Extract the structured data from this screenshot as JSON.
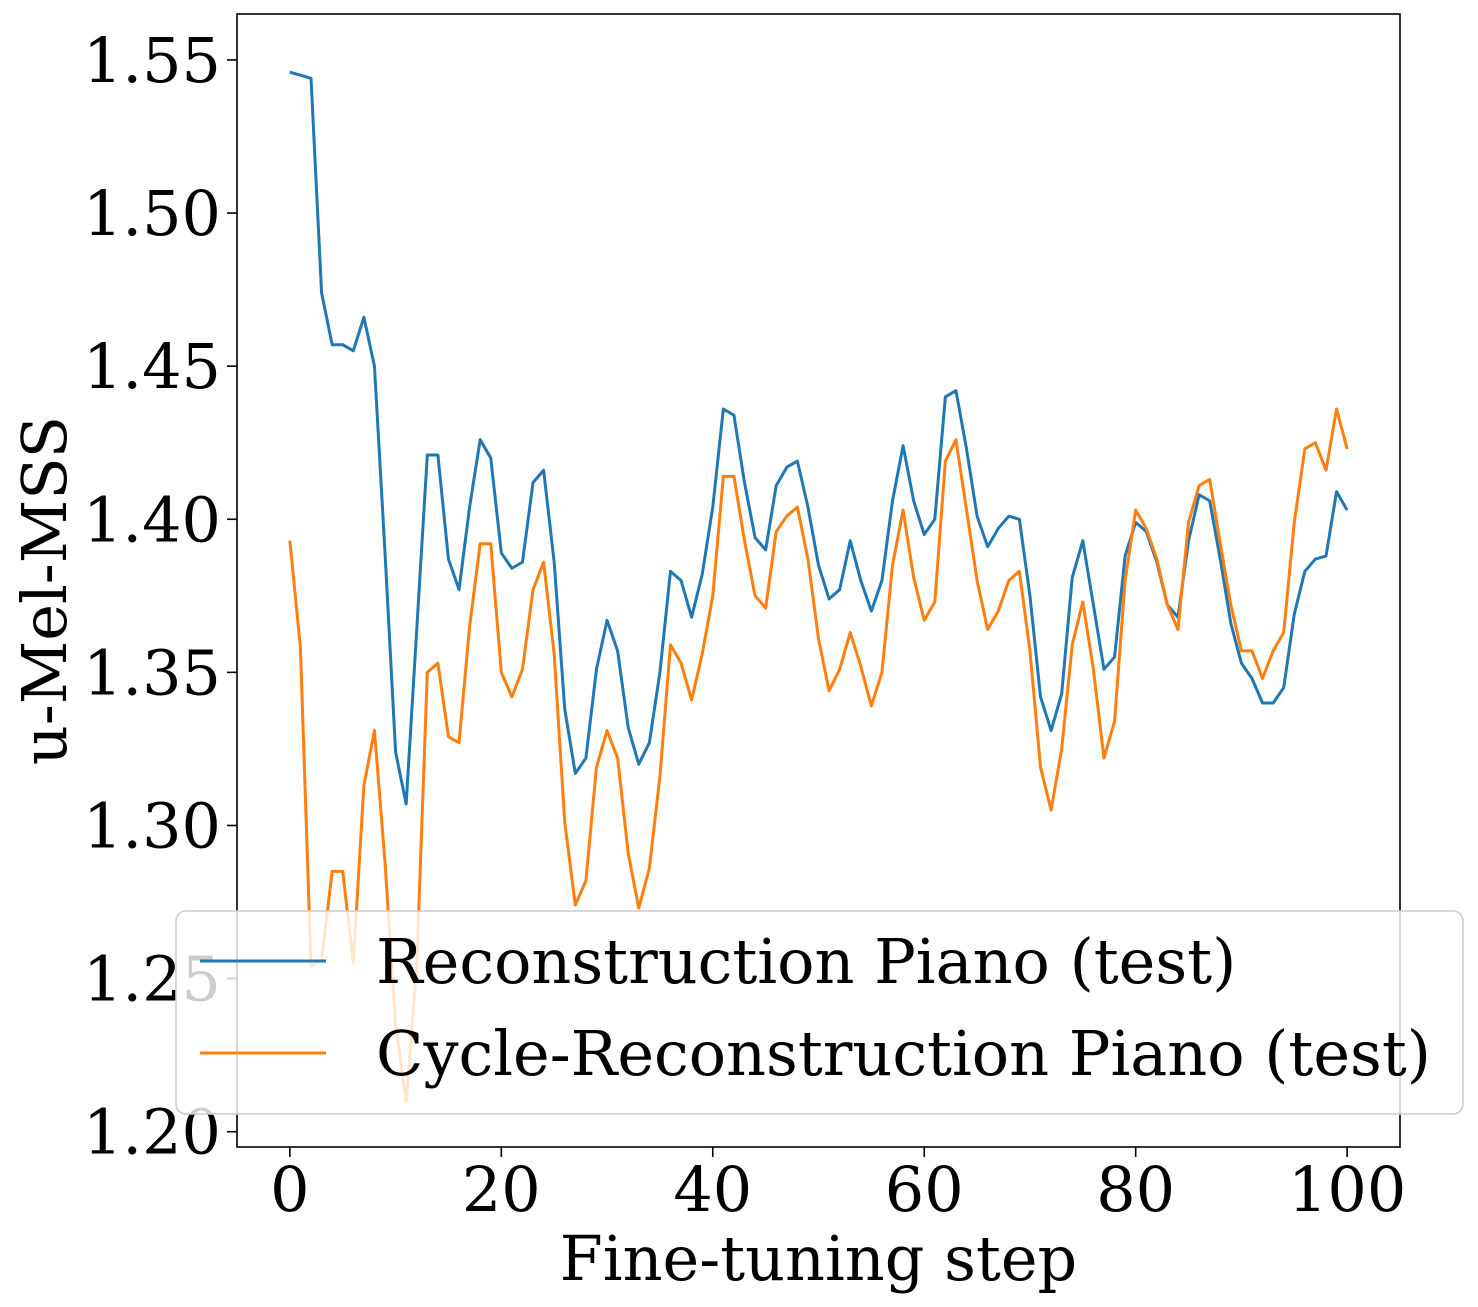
{
  "chart_data": {
    "type": "line",
    "title": "",
    "xlabel": "Fine-tuning step",
    "ylabel": "u-Mel-MSS",
    "xlim": [
      -5,
      105
    ],
    "ylim": [
      1.195,
      1.565
    ],
    "xticks": [
      0,
      20,
      40,
      60,
      80,
      100
    ],
    "xtick_labels": [
      "0",
      "20",
      "40",
      "60",
      "80",
      "100"
    ],
    "yticks": [
      1.2,
      1.25,
      1.3,
      1.35,
      1.4,
      1.45,
      1.5,
      1.55
    ],
    "ytick_labels": [
      "1.20",
      "1.25",
      "1.30",
      "1.35",
      "1.40",
      "1.45",
      "1.50",
      "1.55"
    ],
    "grid": false,
    "legend_position": "lower-right",
    "series": [
      {
        "name": "Reconstruction Piano (test)",
        "color": "#1f77b4",
        "x": [
          0,
          1,
          2,
          3,
          4,
          5,
          6,
          7,
          8,
          9,
          10,
          11,
          12,
          13,
          14,
          15,
          16,
          17,
          18,
          19,
          20,
          21,
          22,
          23,
          24,
          25,
          26,
          27,
          28,
          29,
          30,
          31,
          32,
          33,
          34,
          35,
          36,
          37,
          38,
          39,
          40,
          41,
          42,
          43,
          44,
          45,
          46,
          47,
          48,
          49,
          50,
          51,
          52,
          53,
          54,
          55,
          56,
          57,
          58,
          59,
          60,
          61,
          62,
          63,
          64,
          65,
          66,
          67,
          68,
          69,
          70,
          71,
          72,
          73,
          74,
          75,
          76,
          77,
          78,
          79,
          80,
          81,
          82,
          83,
          84,
          85,
          86,
          87,
          88,
          89,
          90,
          91,
          92,
          93,
          94,
          95,
          96,
          97,
          98,
          99,
          100
        ],
        "y": [
          1.546,
          1.545,
          1.544,
          1.474,
          1.457,
          1.457,
          1.455,
          1.466,
          1.45,
          1.389,
          1.324,
          1.307,
          1.364,
          1.421,
          1.421,
          1.387,
          1.377,
          1.404,
          1.426,
          1.42,
          1.389,
          1.384,
          1.386,
          1.412,
          1.416,
          1.386,
          1.338,
          1.317,
          1.322,
          1.351,
          1.367,
          1.357,
          1.332,
          1.32,
          1.327,
          1.35,
          1.383,
          1.38,
          1.368,
          1.382,
          1.404,
          1.436,
          1.434,
          1.412,
          1.394,
          1.39,
          1.411,
          1.417,
          1.419,
          1.404,
          1.385,
          1.374,
          1.377,
          1.393,
          1.38,
          1.37,
          1.38,
          1.406,
          1.424,
          1.406,
          1.395,
          1.4,
          1.44,
          1.442,
          1.423,
          1.401,
          1.391,
          1.397,
          1.401,
          1.4,
          1.375,
          1.342,
          1.331,
          1.343,
          1.381,
          1.393,
          1.372,
          1.351,
          1.355,
          1.388,
          1.399,
          1.396,
          1.386,
          1.372,
          1.368,
          1.393,
          1.408,
          1.406,
          1.387,
          1.366,
          1.353,
          1.348,
          1.34,
          1.34,
          1.345,
          1.369,
          1.383,
          1.387,
          1.388,
          1.409,
          1.403
        ]
      },
      {
        "name": "Cycle-Reconstruction Piano (test)",
        "color": "#ff7f0e",
        "x": [
          0,
          1,
          2,
          3,
          4,
          5,
          6,
          7,
          8,
          9,
          10,
          11,
          12,
          13,
          14,
          15,
          16,
          17,
          18,
          19,
          20,
          21,
          22,
          23,
          24,
          25,
          26,
          27,
          28,
          29,
          30,
          31,
          32,
          33,
          34,
          35,
          36,
          37,
          38,
          39,
          40,
          41,
          42,
          43,
          44,
          45,
          46,
          47,
          48,
          49,
          50,
          51,
          52,
          53,
          54,
          55,
          56,
          57,
          58,
          59,
          60,
          61,
          62,
          63,
          64,
          65,
          66,
          67,
          68,
          69,
          70,
          71,
          72,
          73,
          74,
          75,
          76,
          77,
          78,
          79,
          80,
          81,
          82,
          83,
          84,
          85,
          86,
          87,
          88,
          89,
          90,
          91,
          92,
          93,
          94,
          95,
          96,
          97,
          98,
          99,
          100
        ],
        "y": [
          1.393,
          1.358,
          1.254,
          1.256,
          1.285,
          1.285,
          1.255,
          1.313,
          1.331,
          1.288,
          1.235,
          1.21,
          1.254,
          1.35,
          1.353,
          1.329,
          1.327,
          1.365,
          1.392,
          1.392,
          1.35,
          1.342,
          1.351,
          1.377,
          1.386,
          1.356,
          1.301,
          1.274,
          1.282,
          1.319,
          1.331,
          1.322,
          1.291,
          1.273,
          1.286,
          1.316,
          1.359,
          1.353,
          1.341,
          1.356,
          1.375,
          1.414,
          1.414,
          1.393,
          1.375,
          1.371,
          1.396,
          1.401,
          1.404,
          1.387,
          1.361,
          1.344,
          1.351,
          1.363,
          1.352,
          1.339,
          1.35,
          1.385,
          1.403,
          1.381,
          1.367,
          1.373,
          1.419,
          1.426,
          1.403,
          1.38,
          1.364,
          1.37,
          1.38,
          1.383,
          1.357,
          1.319,
          1.305,
          1.325,
          1.359,
          1.373,
          1.351,
          1.322,
          1.334,
          1.38,
          1.403,
          1.397,
          1.387,
          1.372,
          1.364,
          1.399,
          1.411,
          1.413,
          1.392,
          1.372,
          1.357,
          1.357,
          1.348,
          1.357,
          1.363,
          1.399,
          1.423,
          1.425,
          1.416,
          1.436,
          1.423
        ]
      }
    ]
  }
}
